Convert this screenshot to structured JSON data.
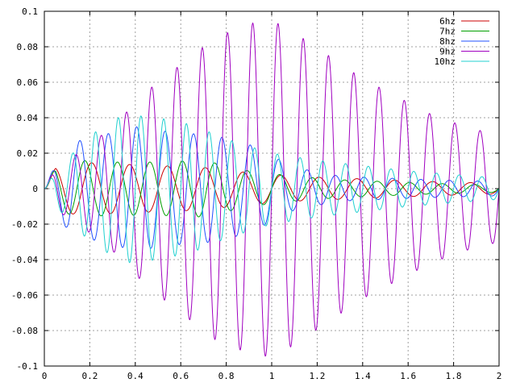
{
  "chart_data": {
    "type": "line",
    "title": "",
    "xlabel": "",
    "ylabel": "",
    "xlim": [
      0,
      2
    ],
    "ylim": [
      -0.1,
      0.1
    ],
    "grid": true,
    "legend_position": "top-right",
    "x_ticks": [
      {
        "value": 0,
        "label": "0"
      },
      {
        "value": 0.2,
        "label": "0.2"
      },
      {
        "value": 0.4,
        "label": "0.4"
      },
      {
        "value": 0.6,
        "label": "0.6"
      },
      {
        "value": 0.8,
        "label": "0.8"
      },
      {
        "value": 1.0,
        "label": "1"
      },
      {
        "value": 1.2,
        "label": "1.2"
      },
      {
        "value": 1.4,
        "label": "1.4"
      },
      {
        "value": 1.6,
        "label": "1.6"
      },
      {
        "value": 1.8,
        "label": "1.8"
      },
      {
        "value": 2.0,
        "label": "2"
      }
    ],
    "y_ticks": [
      {
        "value": 0.1,
        "label": "0.1"
      },
      {
        "value": 0.08,
        "label": "0.08"
      },
      {
        "value": 0.06,
        "label": "0.06"
      },
      {
        "value": 0.04,
        "label": "0.04"
      },
      {
        "value": 0.02,
        "label": "0.02"
      },
      {
        "value": 0,
        "label": "0"
      },
      {
        "value": -0.02,
        "label": "-0.02"
      },
      {
        "value": -0.04,
        "label": "-0.04"
      },
      {
        "value": -0.06,
        "label": "-0.06"
      },
      {
        "value": -0.08,
        "label": "-0.08"
      },
      {
        "value": -0.1,
        "label": "-0.1"
      }
    ],
    "series": [
      {
        "name": "6hz",
        "color": "#cc0000",
        "frequency": 6,
        "envelope": [
          [
            0,
            0
          ],
          [
            0.05,
            0.012
          ],
          [
            0.15,
            0.015
          ],
          [
            0.3,
            0.014
          ],
          [
            0.5,
            0.013
          ],
          [
            0.7,
            0.012
          ],
          [
            0.9,
            0.009
          ],
          [
            1.1,
            0.007
          ],
          [
            1.3,
            0.006
          ],
          [
            1.5,
            0.005
          ],
          [
            1.7,
            0.004
          ],
          [
            2.0,
            0.003
          ]
        ]
      },
      {
        "name": "7hz",
        "color": "#00a000",
        "frequency": 7,
        "envelope": [
          [
            0,
            0
          ],
          [
            0.05,
            0.012
          ],
          [
            0.15,
            0.016
          ],
          [
            0.3,
            0.015
          ],
          [
            0.5,
            0.015
          ],
          [
            0.7,
            0.016
          ],
          [
            0.9,
            0.01
          ],
          [
            1.1,
            0.007
          ],
          [
            1.3,
            0.005
          ],
          [
            1.5,
            0.004
          ],
          [
            1.7,
            0.003
          ],
          [
            2.0,
            0.002
          ]
        ]
      },
      {
        "name": "8hz",
        "color": "#2050ff",
        "frequency": 8,
        "envelope": [
          [
            0,
            0
          ],
          [
            0.05,
            0.014
          ],
          [
            0.12,
            0.026
          ],
          [
            0.25,
            0.03
          ],
          [
            0.4,
            0.035
          ],
          [
            0.55,
            0.032
          ],
          [
            0.75,
            0.03
          ],
          [
            0.9,
            0.025
          ],
          [
            1.1,
            0.012
          ],
          [
            1.3,
            0.007
          ],
          [
            1.5,
            0.006
          ],
          [
            1.7,
            0.005
          ],
          [
            2.0,
            0.004
          ]
        ]
      },
      {
        "name": "9hz",
        "color": "#a000c0",
        "frequency": 9,
        "envelope": [
          [
            0,
            0
          ],
          [
            0.05,
            0.012
          ],
          [
            0.15,
            0.02
          ],
          [
            0.3,
            0.035
          ],
          [
            0.45,
            0.055
          ],
          [
            0.6,
            0.07
          ],
          [
            0.75,
            0.085
          ],
          [
            0.9,
            0.093
          ],
          [
            1.0,
            0.095
          ],
          [
            1.1,
            0.088
          ],
          [
            1.25,
            0.075
          ],
          [
            1.4,
            0.062
          ],
          [
            1.55,
            0.052
          ],
          [
            1.7,
            0.042
          ],
          [
            1.85,
            0.035
          ],
          [
            2.0,
            0.03
          ]
        ]
      },
      {
        "name": "10hz",
        "color": "#20d0d0",
        "frequency": 10,
        "envelope": [
          [
            0,
            0
          ],
          [
            0.05,
            0.01
          ],
          [
            0.2,
            0.03
          ],
          [
            0.35,
            0.042
          ],
          [
            0.5,
            0.04
          ],
          [
            0.65,
            0.036
          ],
          [
            0.8,
            0.028
          ],
          [
            1.0,
            0.02
          ],
          [
            1.2,
            0.016
          ],
          [
            1.4,
            0.013
          ],
          [
            1.6,
            0.01
          ],
          [
            1.8,
            0.008
          ],
          [
            2.0,
            0.006
          ]
        ]
      }
    ]
  }
}
